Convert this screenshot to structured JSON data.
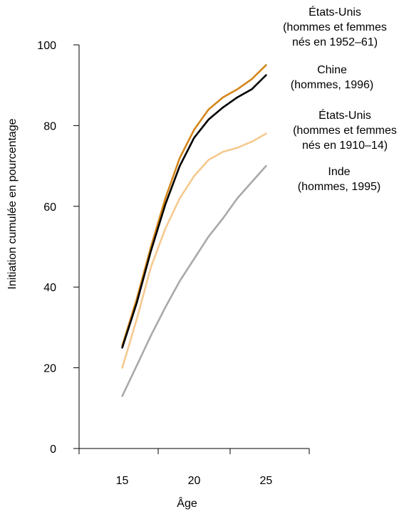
{
  "chart_data": {
    "type": "line",
    "xlabel": "Âge",
    "ylabel": "Initiation cumulée en pourcentage",
    "xlim": [
      12,
      28
    ],
    "ylim": [
      0,
      100
    ],
    "x_ticks": [
      15,
      20,
      25
    ],
    "y_ticks": [
      0,
      20,
      40,
      60,
      80,
      100
    ],
    "grid": false,
    "legend": "direct labels at right",
    "series": [
      {
        "name": "États-Unis (hommes et femmes nés en 1952–61)",
        "label_lines": [
          "États-Unis",
          "(hommes et femmes",
          "nés en 1952–61)"
        ],
        "color": "#d4861a",
        "x": [
          15,
          16,
          17,
          18,
          19,
          20,
          21,
          22,
          23,
          24,
          25
        ],
        "y": [
          25.5,
          37,
          50,
          62,
          72,
          79,
          84,
          87,
          89,
          91.5,
          95
        ]
      },
      {
        "name": "Chine (hommes, 1996)",
        "label_lines": [
          "Chine",
          "(hommes, 1996)"
        ],
        "color": "#000000",
        "x": [
          15,
          16,
          17,
          18,
          19,
          20,
          21,
          22,
          23,
          24,
          25
        ],
        "y": [
          25,
          36,
          49,
          60.5,
          70,
          77,
          81.5,
          84.5,
          87,
          89,
          92.5
        ]
      },
      {
        "name": "États-Unis (hommes et femmes nés en 1910–14)",
        "label_lines": [
          "États-Unis",
          "(hommes et femmes",
          "nés en 1910–14)"
        ],
        "color": "#f5c98e",
        "x": [
          15,
          16,
          17,
          18,
          19,
          20,
          21,
          22,
          23,
          24,
          25
        ],
        "y": [
          20,
          32,
          45,
          54.5,
          62,
          67.5,
          71.5,
          73.5,
          74.5,
          76,
          78
        ]
      },
      {
        "name": "Inde (hommes, 1995)",
        "label_lines": [
          "Inde",
          "(hommes, 1995)"
        ],
        "color": "#a9a9a9",
        "x": [
          15,
          16,
          17,
          18,
          19,
          20,
          21,
          22,
          23,
          24,
          25
        ],
        "y": [
          13,
          20.5,
          28,
          35,
          41.5,
          47,
          52.5,
          57,
          62,
          66,
          70
        ]
      }
    ]
  }
}
